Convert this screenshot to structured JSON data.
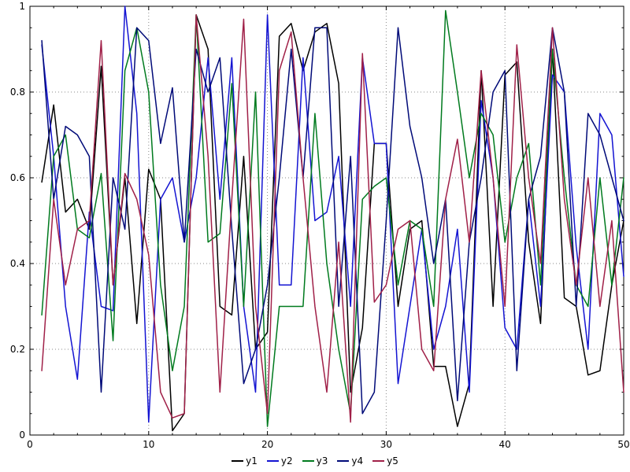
{
  "chart_data": {
    "type": "line",
    "title": "",
    "xlabel": "",
    "ylabel": "",
    "xlim": [
      0,
      50
    ],
    "ylim": [
      0,
      1
    ],
    "grid": true,
    "grid_color": "#8a8a8a",
    "border_color": "#000000",
    "background": "#ffffff",
    "legend_position": "bottom-center",
    "x_major_ticks": [
      0,
      10,
      20,
      30,
      40,
      50
    ],
    "x_tick_labels": [
      "0",
      "10",
      "20",
      "30",
      "40",
      "50"
    ],
    "x_minor_step": 2,
    "y_major_ticks": [
      0,
      0.2,
      0.4,
      0.6,
      0.8,
      1
    ],
    "y_tick_labels": [
      "0",
      "0.2",
      "0.4",
      "0.6",
      "0.8",
      "1"
    ],
    "y_minor_step": 0.05,
    "x": [
      1,
      2,
      3,
      4,
      5,
      6,
      7,
      8,
      9,
      10,
      11,
      12,
      13,
      14,
      15,
      16,
      17,
      18,
      19,
      20,
      21,
      22,
      23,
      24,
      25,
      26,
      27,
      28,
      29,
      30,
      31,
      32,
      33,
      34,
      35,
      36,
      37,
      38,
      39,
      40,
      41,
      42,
      43,
      44,
      45,
      46,
      47,
      48,
      49,
      50
    ],
    "series": [
      {
        "name": "y1",
        "color": "#000000",
        "values": [
          0.59,
          0.77,
          0.52,
          0.55,
          0.48,
          0.86,
          0.35,
          0.6,
          0.26,
          0.62,
          0.55,
          0.01,
          0.05,
          0.98,
          0.9,
          0.3,
          0.28,
          0.65,
          0.2,
          0.24,
          0.93,
          0.96,
          0.85,
          0.94,
          0.96,
          0.82,
          0.1,
          0.25,
          0.68,
          0.68,
          0.3,
          0.48,
          0.5,
          0.16,
          0.16,
          0.02,
          0.12,
          0.85,
          0.3,
          0.84,
          0.87,
          0.45,
          0.26,
          0.9,
          0.32,
          0.3,
          0.14,
          0.15,
          0.35,
          0.5
        ]
      },
      {
        "name": "y2",
        "color": "#1414d2",
        "values": [
          0.91,
          0.65,
          0.3,
          0.13,
          0.52,
          0.3,
          0.29,
          1.0,
          0.75,
          0.03,
          0.55,
          0.6,
          0.45,
          0.6,
          0.88,
          0.55,
          0.88,
          0.3,
          0.1,
          0.98,
          0.35,
          0.35,
          0.88,
          0.5,
          0.52,
          0.65,
          0.3,
          0.88,
          0.68,
          0.68,
          0.12,
          0.3,
          0.48,
          0.2,
          0.3,
          0.48,
          0.1,
          0.78,
          0.6,
          0.25,
          0.2,
          0.55,
          0.3,
          0.84,
          0.8,
          0.44,
          0.2,
          0.75,
          0.7,
          0.37
        ]
      },
      {
        "name": "y3",
        "color": "#007a1e",
        "values": [
          0.28,
          0.65,
          0.7,
          0.48,
          0.46,
          0.61,
          0.22,
          0.85,
          0.95,
          0.8,
          0.35,
          0.15,
          0.3,
          0.98,
          0.45,
          0.47,
          0.82,
          0.3,
          0.8,
          0.02,
          0.3,
          0.3,
          0.3,
          0.75,
          0.4,
          0.2,
          0.05,
          0.55,
          0.58,
          0.6,
          0.35,
          0.5,
          0.48,
          0.3,
          0.99,
          0.8,
          0.6,
          0.75,
          0.7,
          0.45,
          0.6,
          0.68,
          0.35,
          0.9,
          0.6,
          0.35,
          0.3,
          0.6,
          0.35,
          0.6
        ]
      },
      {
        "name": "y4",
        "color": "#000a78",
        "values": [
          0.92,
          0.55,
          0.72,
          0.7,
          0.65,
          0.1,
          0.6,
          0.48,
          0.95,
          0.92,
          0.68,
          0.81,
          0.45,
          0.9,
          0.8,
          0.88,
          0.48,
          0.12,
          0.2,
          0.35,
          0.6,
          0.9,
          0.6,
          0.95,
          0.95,
          0.3,
          0.65,
          0.05,
          0.1,
          0.5,
          0.95,
          0.72,
          0.6,
          0.4,
          0.55,
          0.08,
          0.45,
          0.6,
          0.8,
          0.85,
          0.15,
          0.55,
          0.65,
          0.95,
          0.8,
          0.3,
          0.75,
          0.7,
          0.6,
          0.5
        ]
      },
      {
        "name": "y5",
        "color": "#a02048",
        "values": [
          0.15,
          0.55,
          0.35,
          0.48,
          0.5,
          0.92,
          0.35,
          0.61,
          0.55,
          0.42,
          0.1,
          0.04,
          0.05,
          0.98,
          0.65,
          0.1,
          0.55,
          0.97,
          0.3,
          0.05,
          0.85,
          0.94,
          0.6,
          0.3,
          0.1,
          0.45,
          0.03,
          0.89,
          0.31,
          0.35,
          0.48,
          0.5,
          0.2,
          0.15,
          0.55,
          0.69,
          0.45,
          0.85,
          0.6,
          0.3,
          0.91,
          0.6,
          0.4,
          0.95,
          0.55,
          0.35,
          0.6,
          0.3,
          0.5,
          0.1
        ]
      }
    ]
  }
}
